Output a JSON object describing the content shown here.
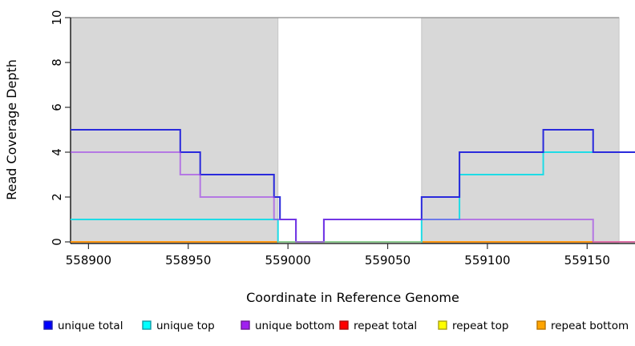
{
  "chart_data": {
    "type": "line",
    "subtype": "step",
    "title": "",
    "xlabel": "Coordinate in Reference Genome",
    "ylabel": "Read Coverage Depth",
    "xlim": [
      558891,
      559174
    ],
    "ylim": [
      0,
      10
    ],
    "x_ticks": [
      558900,
      558950,
      559000,
      559050,
      559100,
      559150
    ],
    "y_ticks": [
      0,
      2,
      4,
      6,
      8,
      10
    ],
    "grid": false,
    "legend_position": "bottom",
    "background_shading_color": "#d8d8d8",
    "shaded_regions": [
      {
        "from": 558891,
        "to": 558995,
        "label": "shaded-region-left"
      },
      {
        "from": 559067,
        "to": 559166,
        "label": "shaded-region-right"
      }
    ],
    "series": [
      {
        "name": "repeat total",
        "legend_fill": "#ff0000",
        "line_color": "#d01818",
        "steps": [
          [
            558891,
            0
          ]
        ]
      },
      {
        "name": "repeat top",
        "legend_fill": "#ffff00",
        "line_color": "#e8e84a",
        "steps": [
          [
            558891,
            0
          ]
        ]
      },
      {
        "name": "repeat bottom",
        "legend_fill": "#ffa500",
        "line_color": "#ff9712",
        "steps": [
          [
            558891,
            0
          ]
        ]
      },
      {
        "name": "unique top",
        "legend_fill": "#00ffff",
        "line_color": "#1edce6",
        "steps": [
          [
            558891,
            1
          ],
          [
            558995,
            0
          ],
          [
            559067,
            1
          ],
          [
            559086,
            3
          ],
          [
            559128,
            4
          ]
        ]
      },
      {
        "name": "unique total",
        "legend_fill": "#0000ff",
        "line_color": "#2a2adc",
        "steps": [
          [
            558891,
            5
          ],
          [
            558946,
            4
          ],
          [
            558956,
            3
          ],
          [
            558993,
            2
          ],
          [
            558996,
            1
          ],
          [
            559004,
            0
          ],
          [
            559018,
            1
          ],
          [
            559067,
            2
          ],
          [
            559086,
            4
          ],
          [
            559128,
            5
          ],
          [
            559153,
            4
          ]
        ]
      },
      {
        "name": "unique bottom",
        "legend_fill": "#a020f0",
        "line_color": "rgba(158,62,234,0.62)",
        "steps": [
          [
            558891,
            4
          ],
          [
            558946,
            3
          ],
          [
            558956,
            2
          ],
          [
            558993,
            1
          ],
          [
            559004,
            0
          ],
          [
            559018,
            1
          ],
          [
            559153,
            0
          ]
        ]
      }
    ],
    "overlay_segments": [
      {
        "from": 558995,
        "to": 559067,
        "y": 0,
        "color": "#8fcc92",
        "label": "zero-line-blend-green",
        "draw_after": "unique total"
      },
      {
        "from": 559153,
        "to": 559174,
        "y": 0,
        "color": "#db6fa5",
        "label": "zero-line-blend-pink",
        "draw_after": "unique bottom"
      }
    ],
    "legend": [
      {
        "label": "unique total",
        "fill": "#0000ff",
        "border": "#1f1fa8"
      },
      {
        "label": "unique top",
        "fill": "#00ffff",
        "border": "#0e9aa6"
      },
      {
        "label": "unique bottom",
        "fill": "#a020f0",
        "border": "#6c1894"
      },
      {
        "label": "repeat total",
        "fill": "#ff0000",
        "border": "#a80d0d"
      },
      {
        "label": "repeat top",
        "fill": "#ffff00",
        "border": "#a8a013"
      },
      {
        "label": "repeat bottom",
        "fill": "#ffa500",
        "border": "#b87400"
      }
    ]
  }
}
